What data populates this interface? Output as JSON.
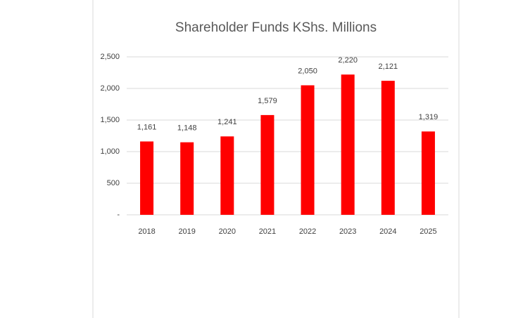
{
  "chart_data": {
    "type": "bar",
    "title": "Shareholder Funds KShs. Millions",
    "categories": [
      "2018",
      "2019",
      "2020",
      "2021",
      "2022",
      "2023",
      "2024",
      "2025"
    ],
    "values": [
      1161,
      1148,
      1241,
      1579,
      2050,
      2220,
      2121,
      1319
    ],
    "value_labels": [
      "1,161",
      "1,148",
      "1,241",
      "1,579",
      "2,050",
      "2,220",
      "2,121",
      "1,319"
    ],
    "color": "#ff0000",
    "ylim": [
      0,
      2500
    ],
    "yticks": [
      {
        "value": 0,
        "label": "-"
      },
      500,
      {
        "value": 1000,
        "label": "1,000"
      },
      {
        "value": 1500,
        "label": "1,500"
      },
      {
        "value": 2000,
        "label": "2,000"
      },
      {
        "value": 2500,
        "label": "2,500"
      }
    ],
    "grid": true
  }
}
